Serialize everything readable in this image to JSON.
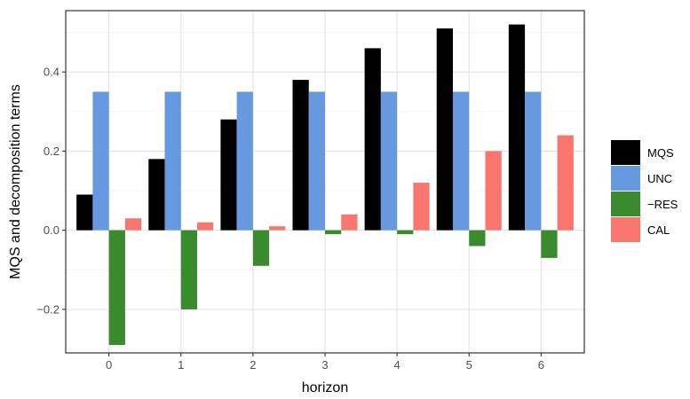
{
  "chart_data": {
    "type": "bar",
    "title": "",
    "xlabel": "horizon",
    "ylabel": "MQS and decomposition terms",
    "categories": [
      "0",
      "1",
      "2",
      "3",
      "4",
      "5",
      "6"
    ],
    "yticks": [
      "-0.2",
      "0.0",
      "0.2",
      "0.4"
    ],
    "ylim": [
      -0.31,
      0.555
    ],
    "grid": true,
    "legend_position": "right",
    "series": [
      {
        "name": "MQS",
        "color": "#000000",
        "values": [
          0.09,
          0.18,
          0.28,
          0.38,
          0.46,
          0.51,
          0.52
        ]
      },
      {
        "name": "UNC",
        "color": "#6699E0",
        "values": [
          0.35,
          0.35,
          0.35,
          0.35,
          0.35,
          0.35,
          0.35
        ]
      },
      {
        "name": "−RES",
        "color": "#3A8B2E",
        "values": [
          -0.29,
          -0.2,
          -0.09,
          -0.01,
          -0.01,
          -0.04,
          -0.07
        ]
      },
      {
        "name": "CAL",
        "color": "#F8766D",
        "values": [
          0.03,
          0.02,
          0.01,
          0.04,
          0.12,
          0.2,
          0.24
        ]
      }
    ]
  }
}
